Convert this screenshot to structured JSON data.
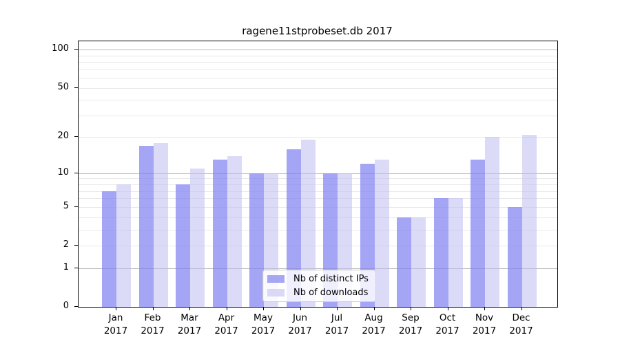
{
  "chart_data": {
    "type": "bar",
    "title": "ragene11stprobeset.db 2017",
    "categories": [
      "Jan 2017",
      "Feb 2017",
      "Mar 2017",
      "Apr 2017",
      "May 2017",
      "Jun 2017",
      "Jul 2017",
      "Aug 2017",
      "Sep 2017",
      "Oct 2017",
      "Nov 2017",
      "Dec 2017"
    ],
    "x_tick_labels": [
      {
        "month": "Jan",
        "year": "2017"
      },
      {
        "month": "Feb",
        "year": "2017"
      },
      {
        "month": "Mar",
        "year": "2017"
      },
      {
        "month": "Apr",
        "year": "2017"
      },
      {
        "month": "May",
        "year": "2017"
      },
      {
        "month": "Jun",
        "year": "2017"
      },
      {
        "month": "Jul",
        "year": "2017"
      },
      {
        "month": "Aug",
        "year": "2017"
      },
      {
        "month": "Sep",
        "year": "2017"
      },
      {
        "month": "Oct",
        "year": "2017"
      },
      {
        "month": "Nov",
        "year": "2017"
      },
      {
        "month": "Dec",
        "year": "2017"
      }
    ],
    "series": [
      {
        "name": "Nb of distinct IPs",
        "color": "#a6a6f2",
        "bar_fill": "rgba(130,130,242,0.72)",
        "values": [
          7,
          17,
          8,
          13,
          10,
          16,
          10,
          12,
          4,
          6,
          13,
          5
        ]
      },
      {
        "name": "Nb of downloads",
        "color": "#d9d9f7",
        "bar_fill": "rgba(190,190,242,0.55)",
        "values": [
          8,
          18,
          11,
          14,
          10,
          19,
          10,
          13,
          4,
          6,
          20,
          21
        ]
      }
    ],
    "y_scale": "log1p",
    "ylabel": "",
    "xlabel": "",
    "y_axis": {
      "ticks": [
        0,
        1,
        2,
        5,
        10,
        20,
        50,
        100
      ],
      "major_gridlines": [
        1,
        10,
        100
      ],
      "minor_gridlines": [
        2,
        3,
        4,
        5,
        6,
        7,
        8,
        9,
        20,
        30,
        40,
        50,
        60,
        70,
        80,
        90
      ],
      "range": [
        0,
        115
      ]
    },
    "grid": true,
    "legend_position": "bottom-center",
    "colors": {
      "axis": "#000000",
      "major_grid": "#b7b7b7",
      "minor_grid": "#e9e9e9",
      "background": "#ffffff"
    }
  }
}
